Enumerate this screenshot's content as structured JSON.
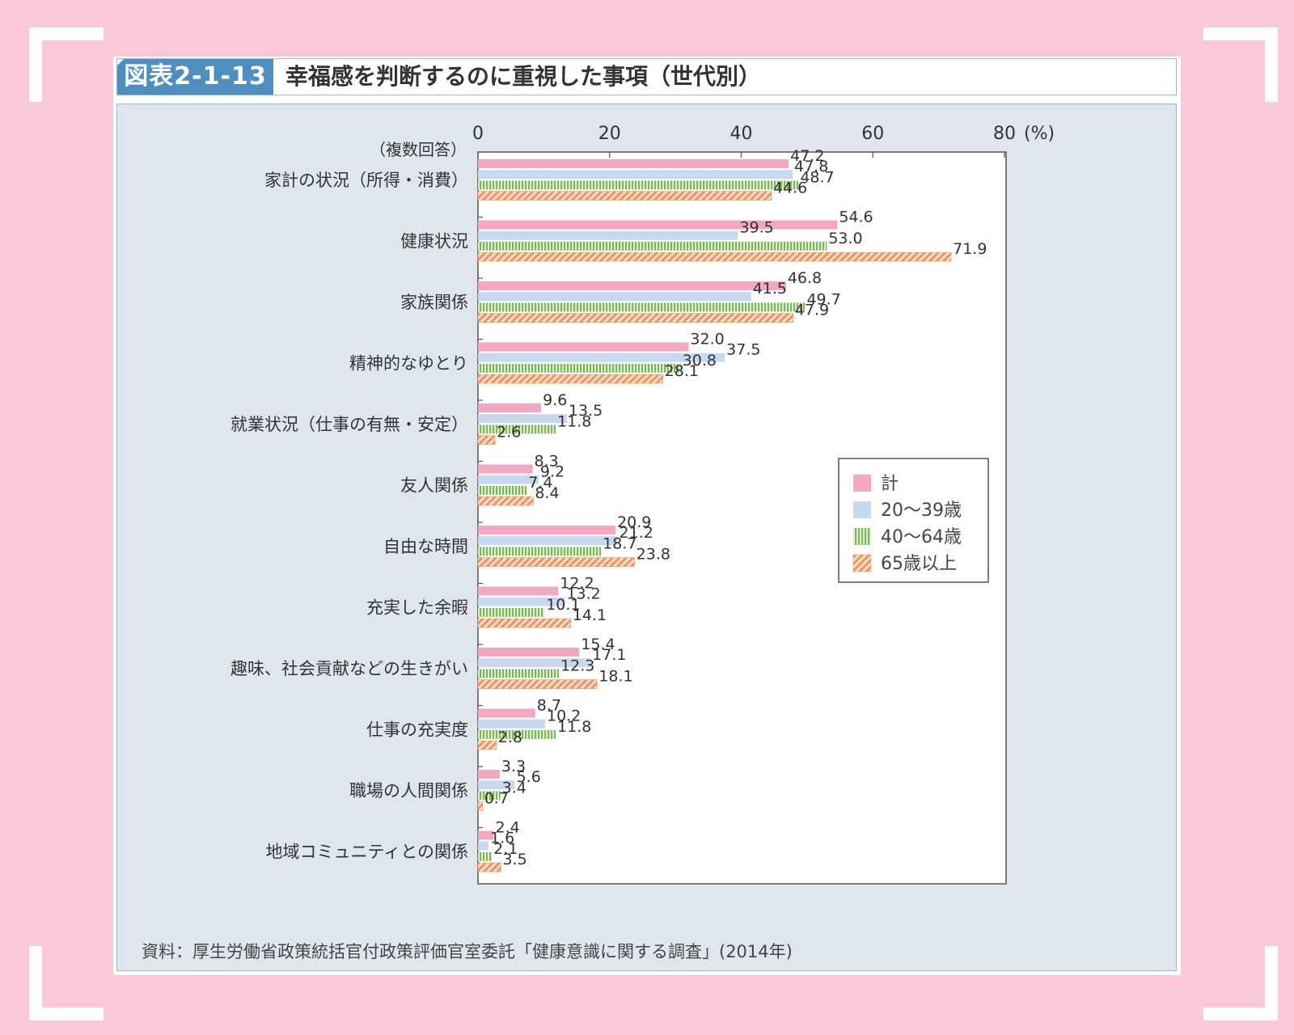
{
  "header": {
    "figure_number": "図表2-1-13",
    "title": "幸福感を判断するのに重視した事項（世代別）"
  },
  "source": "資料：厚生労働省政策統括官付政策評価官室委託「健康意識に関する調査」(2014年)",
  "colors": {
    "background": "#f9c9d8",
    "panel": "#dfe6ee",
    "badge": "#4f8fc0",
    "total": "#f4a7c0",
    "age20_39": "#c7d8ef",
    "age40_64": "#8cc06a",
    "age65plus": "#f0a070"
  },
  "chart_data": {
    "type": "bar",
    "orientation": "horizontal",
    "note": "（複数回答）",
    "unit": "(%)",
    "xlim": [
      0,
      80
    ],
    "x_ticks": [
      "0",
      "20",
      "40",
      "60",
      "80"
    ],
    "legend_position": "right",
    "categories": [
      "家計の状況（所得・消費）",
      "健康状況",
      "家族関係",
      "精神的なゆとり",
      "就業状況（仕事の有無・安定）",
      "友人関係",
      "自由な時間",
      "充実した余暇",
      "趣味、社会貢献などの生きがい",
      "仕事の充実度",
      "職場の人間関係",
      "地域コミュニティとの関係"
    ],
    "series": [
      {
        "name": "計",
        "pattern": "solid",
        "values": [
          47.2,
          54.6,
          46.8,
          32.0,
          9.6,
          8.3,
          20.9,
          12.2,
          15.4,
          8.7,
          3.3,
          2.4
        ]
      },
      {
        "name": "20～39歳",
        "pattern": "solid",
        "values": [
          47.8,
          39.5,
          41.5,
          37.5,
          13.5,
          9.2,
          21.2,
          13.2,
          17.1,
          10.2,
          5.6,
          1.6
        ]
      },
      {
        "name": "40～64歳",
        "pattern": "vertical-stripes",
        "values": [
          48.7,
          53.0,
          49.7,
          30.8,
          11.8,
          7.4,
          18.7,
          10.1,
          12.3,
          11.8,
          3.4,
          2.1
        ]
      },
      {
        "name": "65歳以上",
        "pattern": "diagonal-stripes",
        "values": [
          44.6,
          71.9,
          47.9,
          28.1,
          2.6,
          8.4,
          23.8,
          14.1,
          18.1,
          2.8,
          0.7,
          3.5
        ]
      }
    ]
  }
}
